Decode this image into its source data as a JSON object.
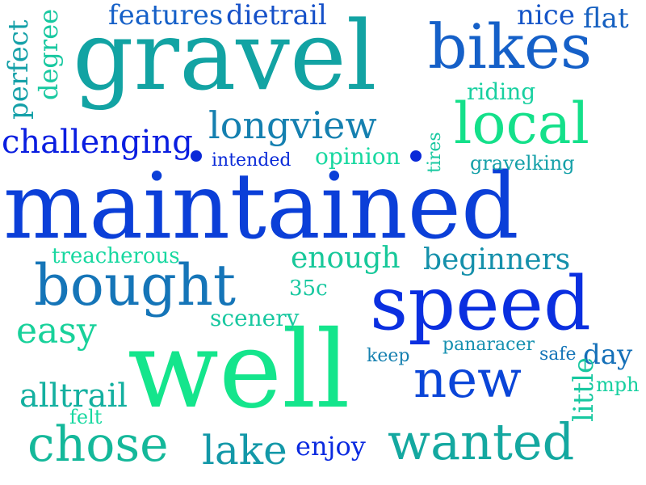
{
  "words": [
    {
      "id": "maintained",
      "text": "maintained",
      "color": "#0b3fd8"
    },
    {
      "id": "gravel",
      "text": "gravel",
      "color": "#12a3a3"
    },
    {
      "id": "well",
      "text": "well",
      "color": "#14e58c"
    },
    {
      "id": "speed",
      "text": "speed",
      "color": "#0a2fe0"
    },
    {
      "id": "bikes",
      "text": "bikes",
      "color": "#1560c8"
    },
    {
      "id": "bought",
      "text": "bought",
      "color": "#1575b8"
    },
    {
      "id": "wanted",
      "text": "wanted",
      "color": "#14a8a0"
    },
    {
      "id": "local",
      "text": "local",
      "color": "#14e08a"
    },
    {
      "id": "new",
      "text": "new",
      "color": "#0a45d8"
    },
    {
      "id": "chose",
      "text": "chose",
      "color": "#14b89a"
    },
    {
      "id": "lake",
      "text": "lake",
      "color": "#1398a8"
    },
    {
      "id": "longview",
      "text": "longview",
      "color": "#1580b0"
    },
    {
      "id": "challenging",
      "text": "challenging",
      "color": "#0a1ee0"
    },
    {
      "id": "easy",
      "text": "easy",
      "color": "#18d19a"
    },
    {
      "id": "alltrail",
      "text": "alltrail",
      "color": "#14b0a0"
    },
    {
      "id": "enough",
      "text": "enough",
      "color": "#18c89a"
    },
    {
      "id": "beginners",
      "text": "beginners",
      "color": "#1590ab"
    },
    {
      "id": "features",
      "text": "features",
      "color": "#1560c8"
    },
    {
      "id": "dietrail",
      "text": "dietrail",
      "color": "#1550c8"
    },
    {
      "id": "nice",
      "text": "nice",
      "color": "#1555c8"
    },
    {
      "id": "flat",
      "text": "flat",
      "color": "#1560c0"
    },
    {
      "id": "perfect",
      "text": "perfect",
      "color": "#14a0a8"
    },
    {
      "id": "degree",
      "text": "degree",
      "color": "#18c8a0"
    },
    {
      "id": "riding",
      "text": "riding",
      "color": "#18d0a0"
    },
    {
      "id": "opinion",
      "text": "opinion",
      "color": "#18d8a0"
    },
    {
      "id": "intended",
      "text": "intended",
      "color": "#0a2ad8"
    },
    {
      "id": "tires",
      "text": "tires",
      "color": "#18c8a0"
    },
    {
      "id": "gravelking",
      "text": "gravelking",
      "color": "#14a0a8"
    },
    {
      "id": "treacherous",
      "text": "treacherous",
      "color": "#18d8a0"
    },
    {
      "id": "35c",
      "text": "35c",
      "color": "#18c8a0"
    },
    {
      "id": "scenery",
      "text": "scenery",
      "color": "#18c8a0"
    },
    {
      "id": "keep",
      "text": "keep",
      "color": "#1580b0"
    },
    {
      "id": "panaracer",
      "text": "panaracer",
      "color": "#1590b0"
    },
    {
      "id": "safe",
      "text": "safe",
      "color": "#1575b8"
    },
    {
      "id": "day",
      "text": "day",
      "color": "#1570b8"
    },
    {
      "id": "little",
      "text": "little",
      "color": "#18c8a0"
    },
    {
      "id": "mph",
      "text": "mph",
      "color": "#18d0a0"
    },
    {
      "id": "felt",
      "text": "felt",
      "color": "#18d8a0"
    },
    {
      "id": "enjoy",
      "text": "enjoy",
      "color": "#0a2ae0"
    }
  ],
  "dot_color": "#0a2ad8"
}
